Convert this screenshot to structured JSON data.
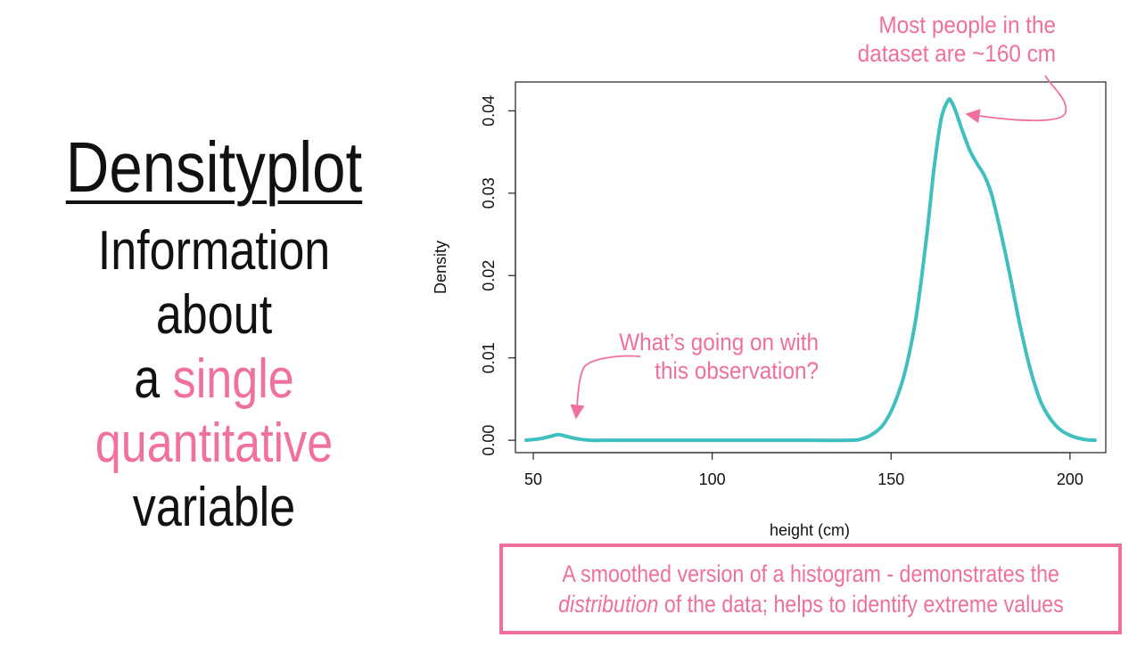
{
  "slide": {
    "title": "Densityplot",
    "line1": "Information about",
    "line2_prefix": "a ",
    "line2_highlight": "single",
    "line3": "quantitative",
    "line4": "variable"
  },
  "annotations": {
    "peak_line1": "Most people in the",
    "peak_line2": "dataset are ~160 cm",
    "outlier_line1": "What’s going on with",
    "outlier_line2": "this observation?"
  },
  "caption": {
    "line1": "A smoothed version of a histogram - demonstrates the",
    "line2_em": "distribution",
    "line2_rest": " of the data; helps to identify extreme values"
  },
  "colors": {
    "accent": "#ef6f9e",
    "curve": "#3fbfbf",
    "text": "#111111"
  },
  "chart_data": {
    "type": "line",
    "xlabel": "height (cm)",
    "ylabel": "Density",
    "xlim": [
      45,
      210
    ],
    "ylim": [
      -0.0015,
      0.0435
    ],
    "x_ticks": [
      50,
      100,
      150,
      200
    ],
    "y_ticks": [
      0.0,
      0.01,
      0.02,
      0.03,
      0.04
    ],
    "y_tick_labels": [
      "0.00",
      "0.01",
      "0.02",
      "0.03",
      "0.04"
    ],
    "grid": false,
    "series": [
      {
        "x": [
          48,
          52,
          55,
          57,
          59,
          62,
          66,
          72,
          80,
          100,
          120,
          138,
          142,
          145,
          148,
          151,
          154,
          157,
          160,
          162,
          164,
          166,
          167,
          168,
          170,
          172,
          174,
          176,
          178,
          180,
          183,
          186,
          189,
          192,
          196,
          200,
          204,
          207
        ],
        "y": [
          0.0,
          0.0002,
          0.0005,
          0.0007,
          0.0005,
          0.0002,
          0.0,
          0.0,
          0.0,
          0.0,
          0.0,
          0.0,
          0.0002,
          0.0008,
          0.002,
          0.0045,
          0.0085,
          0.015,
          0.025,
          0.033,
          0.039,
          0.0413,
          0.041,
          0.04,
          0.0375,
          0.0352,
          0.0336,
          0.0322,
          0.03,
          0.0265,
          0.0205,
          0.014,
          0.0085,
          0.0045,
          0.0018,
          0.0006,
          0.0001,
          0.0
        ]
      }
    ]
  }
}
